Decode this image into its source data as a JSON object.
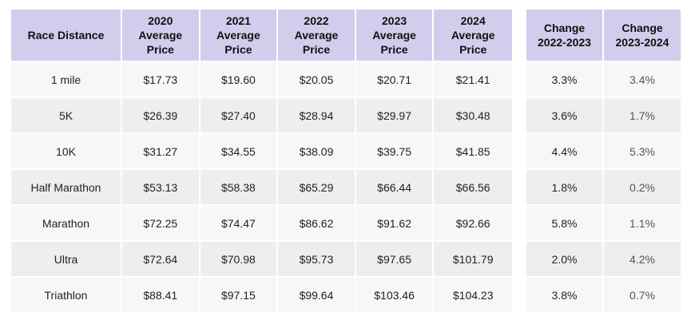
{
  "main_table": {
    "headers": [
      "Race Distance",
      "2020\nAverage\nPrice",
      "2021\nAverage\nPrice",
      "2022\nAverage\nPrice",
      "2023\nAverage\nPrice",
      "2024\nAverage\nPrice"
    ],
    "rows": [
      [
        "1 mile",
        "$17.73",
        "$19.60",
        "$20.05",
        "$20.71",
        "$21.41"
      ],
      [
        "5K",
        "$26.39",
        "$27.40",
        "$28.94",
        "$29.97",
        "$30.48"
      ],
      [
        "10K",
        "$31.27",
        "$34.55",
        "$38.09",
        "$39.75",
        "$41.85"
      ],
      [
        "Half Marathon",
        "$53.13",
        "$58.38",
        "$65.29",
        "$66.44",
        "$66.56"
      ],
      [
        "Marathon",
        "$72.25",
        "$74.47",
        "$86.62",
        "$91.62",
        "$92.66"
      ],
      [
        "Ultra",
        "$72.64",
        "$70.98",
        "$95.73",
        "$97.65",
        "$101.79"
      ],
      [
        "Triathlon",
        "$88.41",
        "$97.15",
        "$99.64",
        "$103.46",
        "$104.23"
      ]
    ]
  },
  "change_table": {
    "headers": [
      "Change\n2022-2023",
      "Change\n2023-2024"
    ],
    "rows": [
      [
        "3.3%",
        "3.4%"
      ],
      [
        "3.6%",
        "1.7%"
      ],
      [
        "4.4%",
        "5.3%"
      ],
      [
        "1.8%",
        "0.2%"
      ],
      [
        "5.8%",
        "1.1%"
      ],
      [
        "2.0%",
        "4.2%"
      ],
      [
        "3.8%",
        "0.7%"
      ]
    ]
  },
  "colors": {
    "header_bg": "#d3ccec",
    "row_odd": "#f7f7f7",
    "row_even": "#eeeeee"
  }
}
